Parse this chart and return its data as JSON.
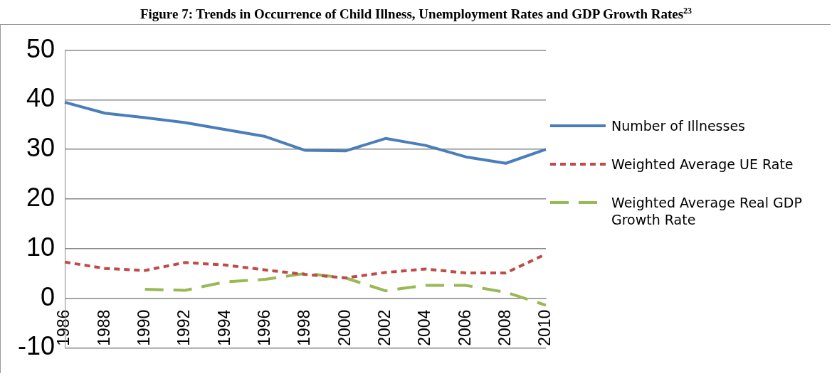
{
  "chart_data": {
    "type": "line",
    "title": "Figure 7: Trends in Occurrence of Child Illness, Unemployment Rates and GDP Growth Rates$^{23}$",
    "categories": [
      "1986",
      "1988",
      "1990",
      "1992",
      "1994",
      "1996",
      "1998",
      "2000",
      "2002",
      "2004",
      "2006",
      "2008",
      "2010"
    ],
    "series": [
      {
        "name": "Number of Illnesses",
        "color": "#4a7ebb",
        "line_style": "solid",
        "values": [
          39.5,
          37.3,
          36.4,
          35.4,
          34.0,
          32.6,
          29.8,
          29.7,
          32.2,
          30.8,
          28.5,
          27.2,
          30.0
        ]
      },
      {
        "name": "Weighted Average UE Rate",
        "color": "#be4b48",
        "line_style": "dotted",
        "values": [
          7.3,
          6.0,
          5.6,
          7.2,
          6.7,
          5.7,
          4.8,
          4.1,
          5.2,
          5.9,
          5.1,
          5.1,
          8.9
        ]
      },
      {
        "name": "Weighted Average Real GDP Growth Rate",
        "color": "#98b954",
        "line_style": "dashed",
        "values": [
          null,
          null,
          1.8,
          1.6,
          3.3,
          3.8,
          5.0,
          4.1,
          1.5,
          2.6,
          2.6,
          1.2,
          -1.4
        ]
      }
    ],
    "ylim": [
      -10,
      50
    ],
    "yticks": [
      -10,
      0,
      10,
      20,
      30,
      40,
      50
    ],
    "grid": "y",
    "legend": "right",
    "marker": "none"
  }
}
